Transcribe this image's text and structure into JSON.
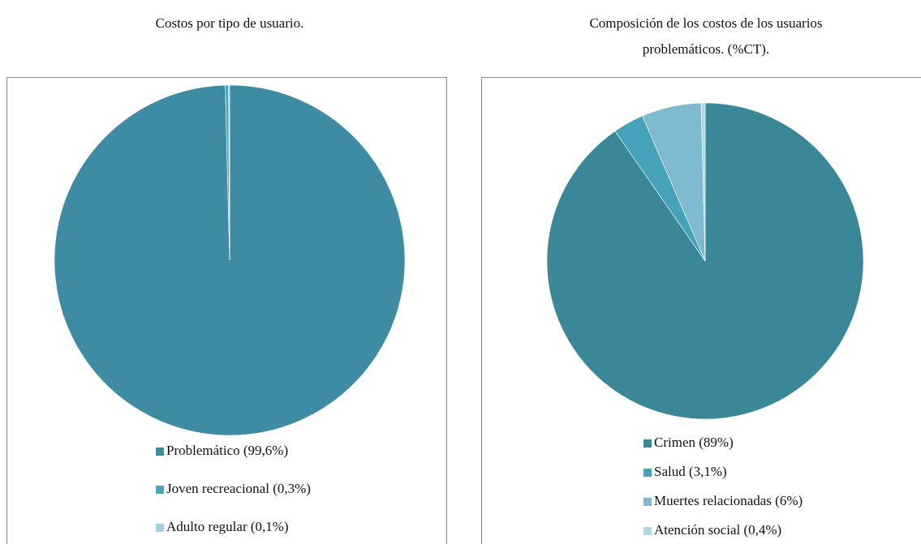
{
  "chart_data": [
    {
      "type": "pie",
      "title": [
        "Costos por tipo de usuario."
      ],
      "categories": [
        "Problemático (99,6%)",
        "Joven recreacional (0,3%)",
        "Adulto regular (0,1%)"
      ],
      "values": [
        99.6,
        0.3,
        0.1
      ],
      "colors": [
        "#3d8ca3",
        "#4aa6be",
        "#9fd0dc"
      ],
      "legend": "bottom"
    },
    {
      "type": "pie",
      "title": [
        "Composición de los costos de los usuarios",
        "problemáticos. (%CT)."
      ],
      "categories": [
        "Crimen (89%)",
        "Salud (3,1%)",
        "Muertes relacionadas (6%)",
        "Atención social (0,4%)"
      ],
      "values": [
        89,
        3.1,
        6,
        0.4
      ],
      "colors": [
        "#3a8798",
        "#45a2b8",
        "#7fb9cd",
        "#b1d7e0"
      ],
      "legend": "bottom"
    }
  ]
}
